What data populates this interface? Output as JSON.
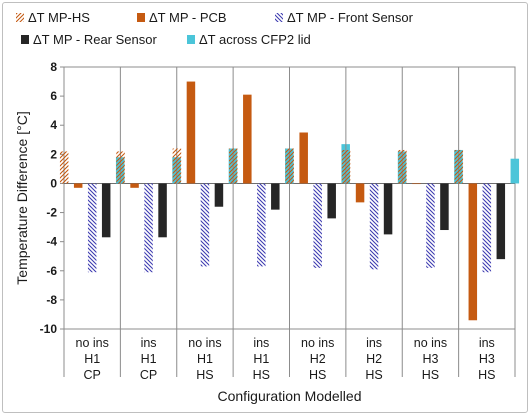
{
  "chart_data": {
    "type": "bar",
    "categories": [
      [
        "no ins",
        "H1",
        "CP"
      ],
      [
        "ins",
        "H1",
        "CP"
      ],
      [
        "no ins",
        "H1",
        "HS"
      ],
      [
        "ins",
        "H1",
        "HS"
      ],
      [
        "no ins",
        "H2",
        "HS"
      ],
      [
        "ins",
        "H2",
        "HS"
      ],
      [
        "no ins",
        "H3",
        "HS"
      ],
      [
        "ins",
        "H3",
        "HS"
      ]
    ],
    "series": [
      {
        "name": "ΔT MP-HS",
        "color": "#c55a11",
        "pattern": "diag-up",
        "values": [
          2.2,
          2.2,
          2.4,
          2.4,
          2.4,
          2.3,
          2.3,
          2.3
        ]
      },
      {
        "name": "ΔT MP - PCB",
        "color": "#c55a11",
        "pattern": "solid",
        "values": [
          -0.3,
          -0.3,
          7.0,
          6.1,
          3.5,
          -1.3,
          0.0,
          -9.4
        ]
      },
      {
        "name": "ΔT MP - Front Sensor",
        "color": "#3d3bb0",
        "pattern": "diag-down",
        "values": [
          -6.1,
          -6.1,
          -5.7,
          -5.7,
          -5.8,
          -5.9,
          -5.8,
          -6.1
        ]
      },
      {
        "name": "ΔT MP - Rear Sensor",
        "color": "#262626",
        "pattern": "solid",
        "values": [
          -3.7,
          -3.7,
          -1.6,
          -1.8,
          -2.4,
          -3.5,
          -3.2,
          -5.2
        ]
      },
      {
        "name": "ΔT across CFP2 lid",
        "color": "#4bc5d9",
        "pattern": "solid",
        "values": [
          1.8,
          1.8,
          2.4,
          2.4,
          2.7,
          2.2,
          2.3,
          1.7
        ]
      }
    ],
    "yticks": [
      8,
      6,
      4,
      2,
      0,
      -2,
      -4,
      -6,
      -8,
      -10
    ],
    "ylim": [
      -10,
      8
    ],
    "xlabel": "Configuration Modelled",
    "ylabel": "Temperature Difference [°C]",
    "grid": "vertical separators between categories",
    "legend_position": "top"
  }
}
